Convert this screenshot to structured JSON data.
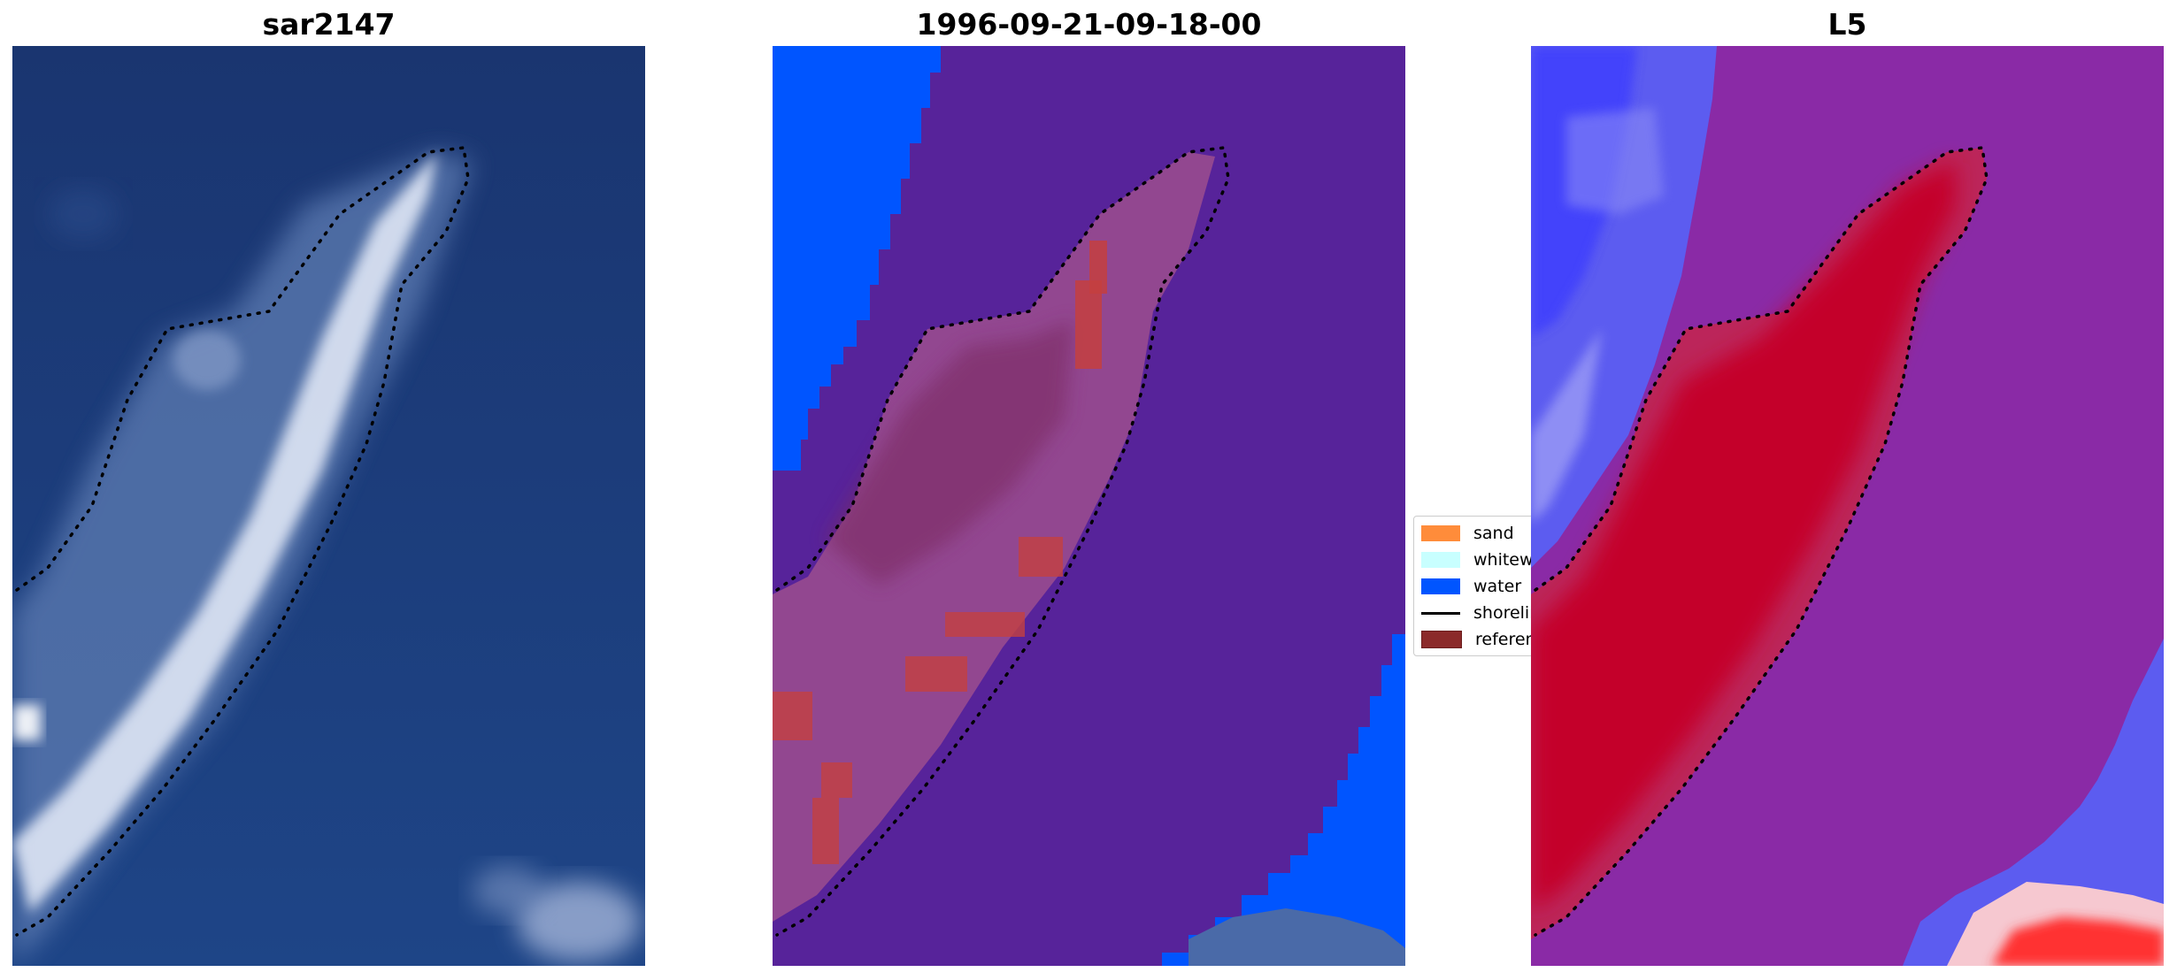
{
  "panels": [
    {
      "title": "sar2147"
    },
    {
      "title": "1996-09-21-09-18-00"
    },
    {
      "title": "L5"
    }
  ],
  "legend": {
    "items": [
      {
        "label": "sand",
        "color": "#ff8c3a"
      },
      {
        "label": "whitewater",
        "color": "#c8ffff"
      },
      {
        "label": "water",
        "color": "#0055ff"
      },
      {
        "label": "shoreline",
        "color": "#000000"
      },
      {
        "label": "reference",
        "color": "#8b2a2a"
      }
    ]
  },
  "colors": {
    "rgb_sea": "#1d3a78",
    "class_background": "#57239a",
    "class_water": "#0055ff",
    "index_land": "#c4002c",
    "index_water": "#3a3aff"
  }
}
